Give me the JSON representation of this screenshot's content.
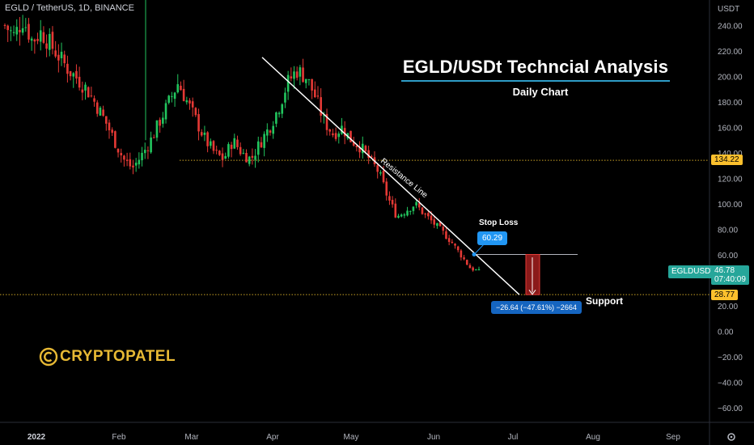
{
  "header": {
    "symbol_label": "EGLD / TetherUS, 1D, BINANCE"
  },
  "overlay": {
    "title": "EGLD/USDt Techncial Analysis",
    "subtitle": "Daily Chart",
    "resistance_label": "Resistance Line",
    "stop_loss_label": "Stop Loss",
    "stop_loss_value": "60.29",
    "support_label": "Support",
    "measure_label": "−26.64 (−47.61%) −2664",
    "logo_text": "CRYPTOPATEL"
  },
  "price_axis": {
    "currency": "USDT",
    "ticks": [
      "240.00",
      "220.00",
      "200.00",
      "180.00",
      "160.00",
      "140.00",
      "120.00",
      "100.00",
      "80.00",
      "60.00",
      "40.00",
      "20.00",
      "0.00",
      "−20.00",
      "−40.00",
      "−60.00"
    ],
    "price_tag_1": "134.22",
    "price_tag_2": "28.77",
    "symbol_tag": "EGLDUSDT",
    "last_price": "46.78",
    "countdown": "07:40:09"
  },
  "time_axis": {
    "labels": [
      "2022",
      "Feb",
      "Mar",
      "Apr",
      "May",
      "Jun",
      "Jul",
      "Aug",
      "Sep"
    ],
    "icon": "gear-icon"
  },
  "colors": {
    "up": "#26a69a",
    "up_bright": "#22c55e",
    "down": "#e53935",
    "accent": "#2196f3",
    "logo": "#e7b934"
  },
  "chart_data": {
    "type": "candlestick",
    "title": "EGLD/USDt Techncial Analysis",
    "subtitle": "Daily Chart",
    "ylim": [
      -70,
      250
    ],
    "x": [
      "2022",
      "Feb",
      "Mar",
      "Apr",
      "May",
      "Jun",
      "Jul",
      "Aug",
      "Sep"
    ],
    "close_path": [
      [
        "Jan",
        240
      ],
      [
        "Jan",
        232
      ],
      [
        "Jan",
        245
      ],
      [
        "Jan",
        228
      ],
      [
        "Jan",
        235
      ],
      [
        "Jan",
        225
      ],
      [
        "Jan",
        215
      ],
      [
        "Jan",
        205
      ],
      [
        "Jan",
        198
      ],
      [
        "Jan",
        190
      ],
      [
        "Jan",
        178
      ],
      [
        "Jan",
        165
      ],
      [
        "Jan",
        150
      ],
      [
        "Jan",
        135
      ],
      [
        "Jan",
        128
      ],
      [
        "Feb",
        138
      ],
      [
        "Feb",
        150
      ],
      [
        "Feb",
        165
      ],
      [
        "Feb",
        180
      ],
      [
        "Feb",
        195
      ],
      [
        "Feb",
        180
      ],
      [
        "Feb",
        165
      ],
      [
        "Feb",
        150
      ],
      [
        "Mar",
        140
      ],
      [
        "Mar",
        135
      ],
      [
        "Mar",
        150
      ],
      [
        "Mar",
        140
      ],
      [
        "Mar",
        135
      ],
      [
        "Mar",
        148
      ],
      [
        "Mar",
        160
      ],
      [
        "Mar",
        175
      ],
      [
        "Mar",
        195
      ],
      [
        "Apr",
        205
      ],
      [
        "Apr",
        200
      ],
      [
        "Apr",
        185
      ],
      [
        "Apr",
        165
      ],
      [
        "Apr",
        155
      ],
      [
        "Apr",
        160
      ],
      [
        "Apr",
        150
      ],
      [
        "Apr",
        145
      ],
      [
        "May",
        135
      ],
      [
        "May",
        125
      ],
      [
        "May",
        105
      ],
      [
        "May",
        90
      ],
      [
        "May",
        95
      ],
      [
        "May",
        100
      ],
      [
        "May",
        92
      ],
      [
        "Jun",
        85
      ],
      [
        "Jun",
        78
      ],
      [
        "Jun",
        70
      ],
      [
        "Jun",
        60
      ],
      [
        "Jun",
        50
      ],
      [
        "Jun",
        46.78
      ]
    ],
    "horizontal_levels": [
      {
        "label": "Resistance",
        "value": 134.22
      },
      {
        "label": "Support",
        "value": 28.77
      },
      {
        "label": "Stop Loss",
        "value": 60.29
      }
    ],
    "trendline": {
      "label": "Resistance Line",
      "from": [
        "Apr",
        215
      ],
      "to": [
        "Jul",
        28.77
      ]
    },
    "measure": {
      "change": -26.64,
      "change_pct": -47.61,
      "label": "−26.64 (−47.61%) −2664"
    },
    "last_price": 46.78
  }
}
